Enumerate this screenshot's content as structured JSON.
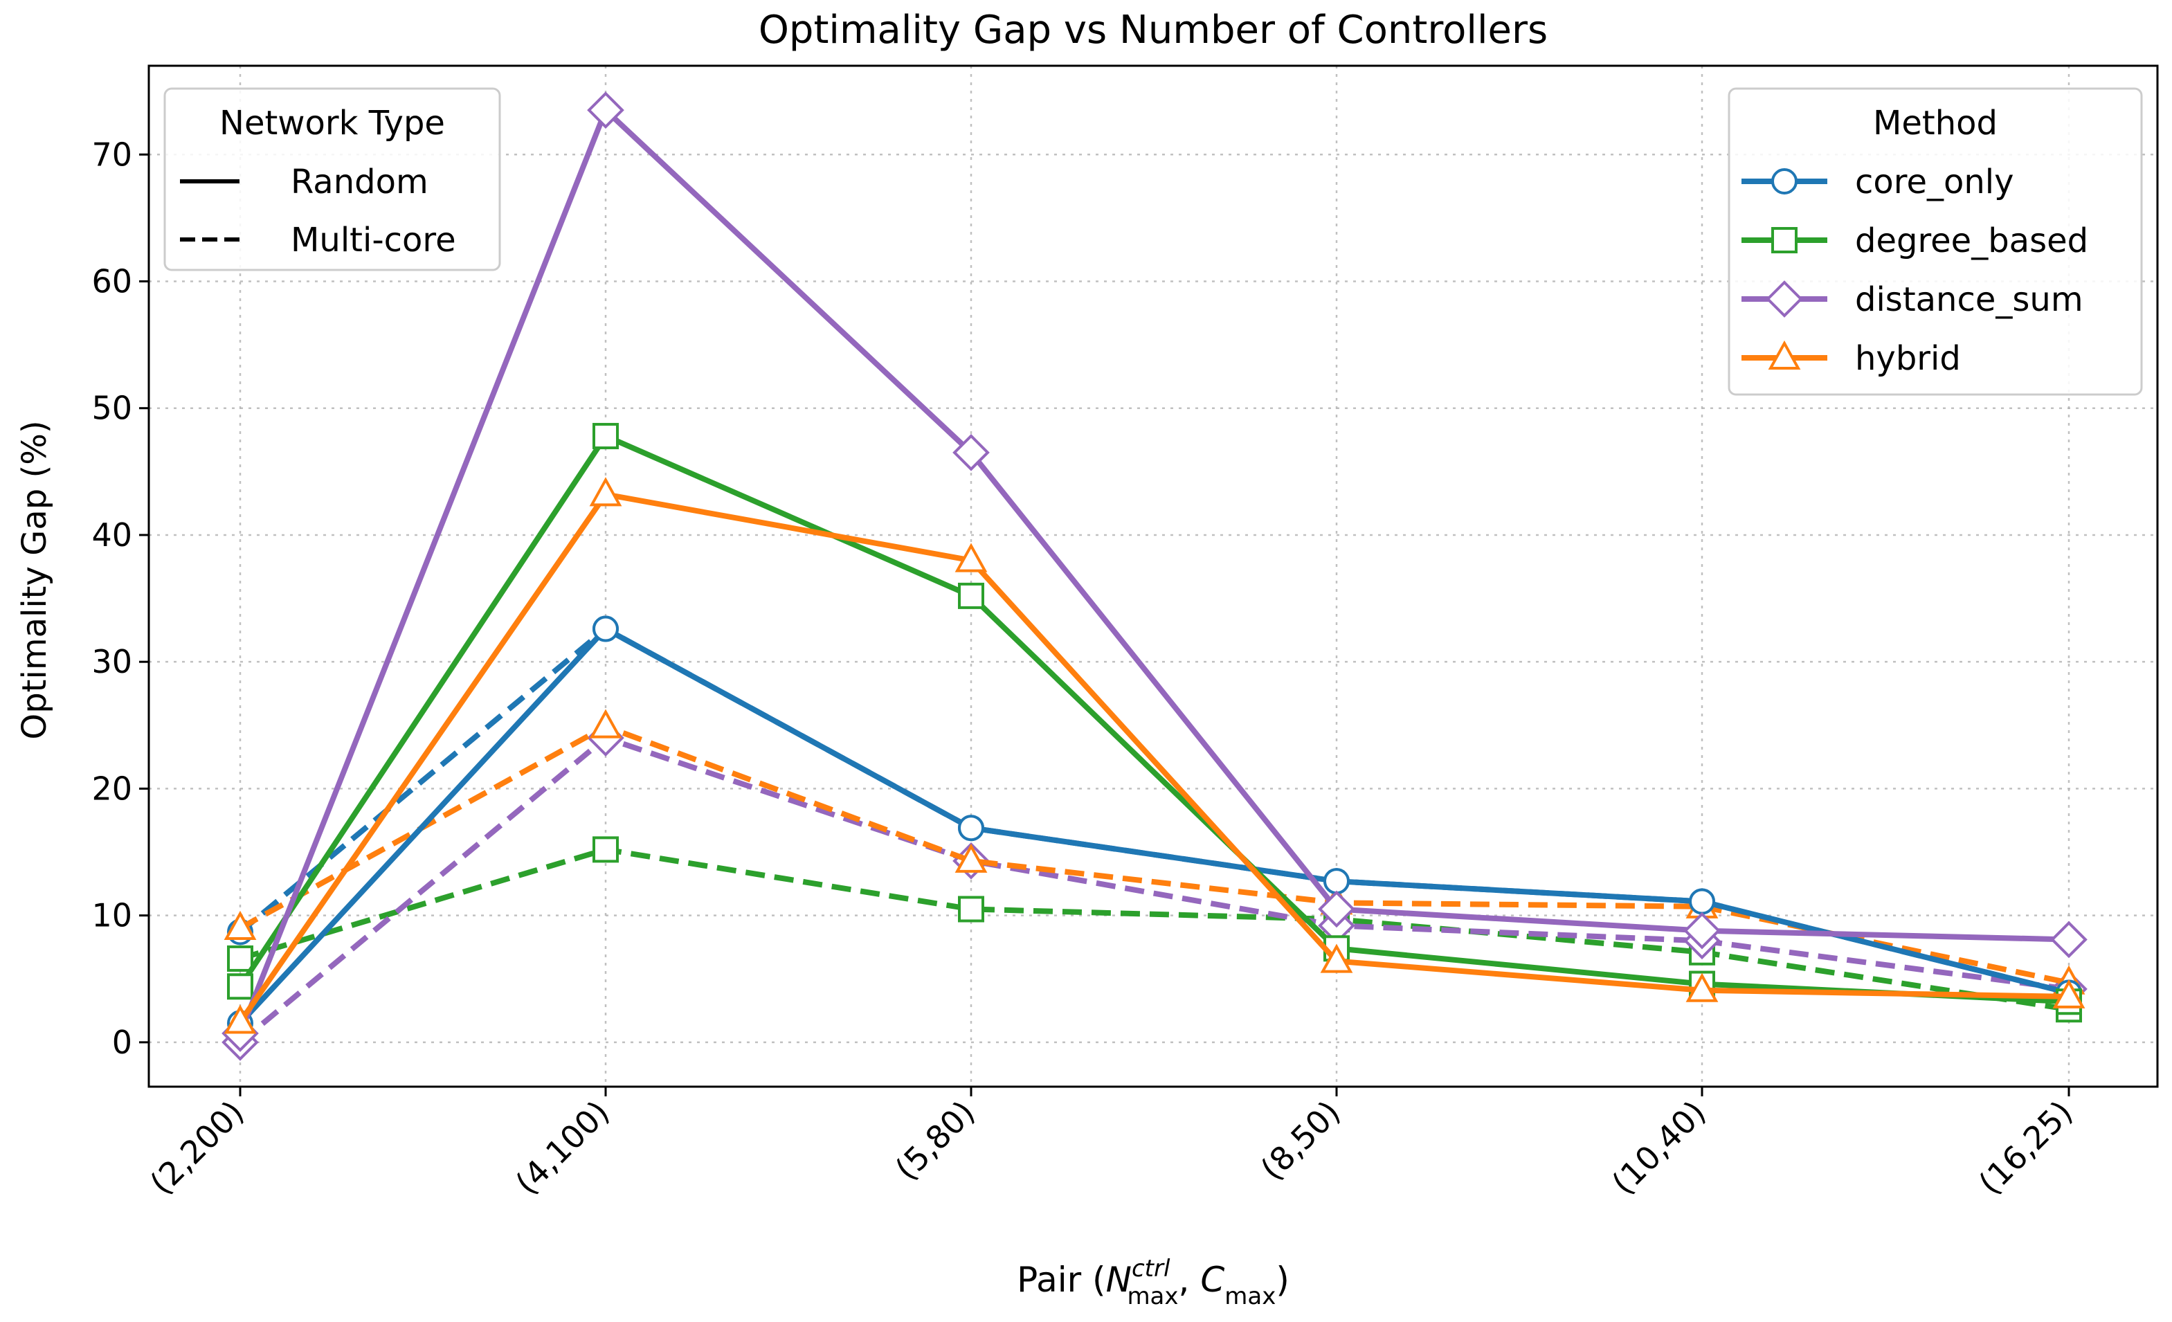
{
  "chart_data": {
    "type": "line",
    "title": "Optimality Gap vs Number of Controllers",
    "xlabel": {
      "main": "Pair (",
      "n_sym": "N",
      "n_sup": "ctrl",
      "n_sub": "max",
      "sep": ", ",
      "c_sym": "C",
      "c_sub": "max",
      "close": ")"
    },
    "ylabel": "Optimality Gap (%)",
    "categories": [
      "(2,200)",
      "(4,100)",
      "(5,80)",
      "(8,50)",
      "(10,40)",
      "(16,25)"
    ],
    "ylim": [
      -3.5,
      77
    ],
    "yticks": [
      0,
      10,
      20,
      30,
      40,
      50,
      60,
      70
    ],
    "grid": true,
    "colors": {
      "core_only": "#1f77b4",
      "degree_based": "#2ca02c",
      "distance_sum": "#9467bd",
      "hybrid": "#ff7f0e"
    },
    "markers": {
      "core_only": "circle",
      "degree_based": "square",
      "distance_sum": "diamond",
      "hybrid": "triangle"
    },
    "series": [
      {
        "method": "core_only",
        "network": "Random",
        "values": [
          1.5,
          32.6,
          16.9,
          12.7,
          11.1,
          3.9
        ]
      },
      {
        "method": "degree_based",
        "network": "Random",
        "values": [
          4.4,
          47.8,
          35.2,
          7.4,
          4.6,
          3.2
        ]
      },
      {
        "method": "distance_sum",
        "network": "Random",
        "values": [
          0.7,
          73.5,
          46.5,
          10.5,
          8.8,
          8.1
        ]
      },
      {
        "method": "hybrid",
        "network": "Random",
        "values": [
          1.6,
          43.2,
          38.0,
          6.4,
          4.1,
          3.6
        ]
      },
      {
        "method": "core_only",
        "network": "Multi-core",
        "values": [
          8.7,
          32.6,
          16.9,
          12.7,
          11.1,
          3.9
        ]
      },
      {
        "method": "degree_based",
        "network": "Multi-core",
        "values": [
          6.6,
          15.2,
          10.5,
          9.7,
          7.1,
          2.6
        ]
      },
      {
        "method": "distance_sum",
        "network": "Multi-core",
        "values": [
          0.0,
          24.0,
          14.3,
          9.2,
          8.0,
          4.2
        ]
      },
      {
        "method": "hybrid",
        "network": "Multi-core",
        "values": [
          9.0,
          24.9,
          14.3,
          11.0,
          10.7,
          4.7
        ]
      }
    ],
    "legend_network": {
      "title": "Network Type",
      "placement": "top-left",
      "entries": [
        {
          "label": "Random",
          "style": "solid"
        },
        {
          "label": "Multi-core",
          "style": "dashed"
        }
      ]
    },
    "legend_method": {
      "title": "Method",
      "placement": "top-right",
      "entries": [
        "core_only",
        "degree_based",
        "distance_sum",
        "hybrid"
      ]
    }
  }
}
